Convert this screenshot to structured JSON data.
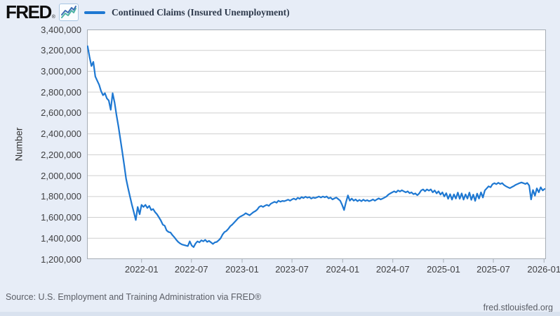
{
  "header": {
    "logo_text": "FRED",
    "logo_reg": "®"
  },
  "legend": {
    "label": "Continued Claims (Insured Unemployment)"
  },
  "footer": {
    "source": "Source: U.S. Employment and Training Administration via FRED®",
    "site": "fred.stlouisfed.org"
  },
  "colors": {
    "line": "#1e78d2",
    "background": "#e7edf7",
    "plot_background": "#ffffff",
    "grid": "#cfcfcf",
    "plot_border": "#a6adb5",
    "axis_text": "#3f3f41",
    "legend_text": "#2e3a4c",
    "source_text": "#5b5e66"
  },
  "chart_data": {
    "type": "line",
    "title": "Continued Claims (Insured Unemployment)",
    "ylabel": "Number",
    "xlabel": "",
    "grid": "horizontal-only",
    "legend_position": "top-left",
    "y_min": 1200000,
    "y_max": 3400000,
    "y_step": 200000,
    "y_tick_labels": [
      "3,400,000",
      "3,200,000",
      "3,000,000",
      "2,800,000",
      "2,600,000",
      "2,400,000",
      "2,200,000",
      "2,000,000",
      "1,800,000",
      "1,600,000",
      "1,400,000",
      "1,200,000"
    ],
    "x_min": "2021-06-17",
    "x_max": "2026-01-08",
    "x_ticks": [
      {
        "date": "2022-01-01",
        "label": "2022-01"
      },
      {
        "date": "2022-07-01",
        "label": "2022-07"
      },
      {
        "date": "2023-01-01",
        "label": "2023-01"
      },
      {
        "date": "2023-07-01",
        "label": "2023-07"
      },
      {
        "date": "2024-01-01",
        "label": "2024-01"
      },
      {
        "date": "2024-07-01",
        "label": "2024-07"
      },
      {
        "date": "2025-01-01",
        "label": "2025-01"
      },
      {
        "date": "2025-07-01",
        "label": "2025-07"
      },
      {
        "date": "2026-01-01",
        "label": "2026-01"
      }
    ],
    "series": [
      {
        "name": "Continued Claims (Insured Unemployment)",
        "color": "#1e78d2",
        "observations": [
          [
            "2021-06-19",
            3240000
          ],
          [
            "2021-06-26",
            3140000
          ],
          [
            "2021-07-03",
            3050000
          ],
          [
            "2021-07-10",
            3090000
          ],
          [
            "2021-07-17",
            2950000
          ],
          [
            "2021-07-24",
            2910000
          ],
          [
            "2021-07-31",
            2870000
          ],
          [
            "2021-08-07",
            2810000
          ],
          [
            "2021-08-14",
            2770000
          ],
          [
            "2021-08-21",
            2790000
          ],
          [
            "2021-08-28",
            2740000
          ],
          [
            "2021-09-04",
            2720000
          ],
          [
            "2021-09-11",
            2630000
          ],
          [
            "2021-09-18",
            2790000
          ],
          [
            "2021-09-25",
            2700000
          ],
          [
            "2021-10-02",
            2580000
          ],
          [
            "2021-10-09",
            2470000
          ],
          [
            "2021-10-16",
            2350000
          ],
          [
            "2021-10-23",
            2230000
          ],
          [
            "2021-10-30",
            2100000
          ],
          [
            "2021-11-06",
            1970000
          ],
          [
            "2021-11-13",
            1880000
          ],
          [
            "2021-11-20",
            1800000
          ],
          [
            "2021-11-27",
            1720000
          ],
          [
            "2021-12-04",
            1650000
          ],
          [
            "2021-12-11",
            1575000
          ],
          [
            "2021-12-18",
            1700000
          ],
          [
            "2021-12-25",
            1630000
          ],
          [
            "2022-01-01",
            1720000
          ],
          [
            "2022-01-08",
            1700000
          ],
          [
            "2022-01-15",
            1720000
          ],
          [
            "2022-01-22",
            1690000
          ],
          [
            "2022-01-29",
            1710000
          ],
          [
            "2022-02-05",
            1670000
          ],
          [
            "2022-02-12",
            1680000
          ],
          [
            "2022-02-19",
            1650000
          ],
          [
            "2022-02-26",
            1630000
          ],
          [
            "2022-03-05",
            1600000
          ],
          [
            "2022-03-12",
            1570000
          ],
          [
            "2022-03-19",
            1530000
          ],
          [
            "2022-03-26",
            1520000
          ],
          [
            "2022-04-02",
            1475000
          ],
          [
            "2022-04-09",
            1460000
          ],
          [
            "2022-04-16",
            1455000
          ],
          [
            "2022-04-23",
            1430000
          ],
          [
            "2022-04-30",
            1410000
          ],
          [
            "2022-05-07",
            1385000
          ],
          [
            "2022-05-14",
            1365000
          ],
          [
            "2022-05-21",
            1350000
          ],
          [
            "2022-05-28",
            1340000
          ],
          [
            "2022-06-04",
            1335000
          ],
          [
            "2022-06-11",
            1330000
          ],
          [
            "2022-06-18",
            1325000
          ],
          [
            "2022-06-25",
            1370000
          ],
          [
            "2022-07-02",
            1330000
          ],
          [
            "2022-07-09",
            1315000
          ],
          [
            "2022-07-16",
            1350000
          ],
          [
            "2022-07-23",
            1370000
          ],
          [
            "2022-07-30",
            1360000
          ],
          [
            "2022-08-06",
            1380000
          ],
          [
            "2022-08-13",
            1370000
          ],
          [
            "2022-08-20",
            1385000
          ],
          [
            "2022-08-27",
            1365000
          ],
          [
            "2022-09-03",
            1375000
          ],
          [
            "2022-09-10",
            1360000
          ],
          [
            "2022-09-17",
            1345000
          ],
          [
            "2022-09-24",
            1360000
          ],
          [
            "2022-10-01",
            1365000
          ],
          [
            "2022-10-08",
            1380000
          ],
          [
            "2022-10-15",
            1400000
          ],
          [
            "2022-10-22",
            1435000
          ],
          [
            "2022-10-29",
            1460000
          ],
          [
            "2022-11-05",
            1470000
          ],
          [
            "2022-11-12",
            1490000
          ],
          [
            "2022-11-19",
            1515000
          ],
          [
            "2022-11-26",
            1530000
          ],
          [
            "2022-12-03",
            1550000
          ],
          [
            "2022-12-10",
            1570000
          ],
          [
            "2022-12-17",
            1590000
          ],
          [
            "2022-12-24",
            1605000
          ],
          [
            "2022-12-31",
            1615000
          ],
          [
            "2023-01-07",
            1625000
          ],
          [
            "2023-01-14",
            1640000
          ],
          [
            "2023-01-21",
            1630000
          ],
          [
            "2023-01-28",
            1620000
          ],
          [
            "2023-02-04",
            1635000
          ],
          [
            "2023-02-11",
            1650000
          ],
          [
            "2023-02-18",
            1660000
          ],
          [
            "2023-02-25",
            1675000
          ],
          [
            "2023-03-04",
            1700000
          ],
          [
            "2023-03-11",
            1710000
          ],
          [
            "2023-03-18",
            1700000
          ],
          [
            "2023-03-25",
            1712000
          ],
          [
            "2023-04-01",
            1720000
          ],
          [
            "2023-04-08",
            1710000
          ],
          [
            "2023-04-15",
            1730000
          ],
          [
            "2023-04-22",
            1740000
          ],
          [
            "2023-04-29",
            1750000
          ],
          [
            "2023-05-06",
            1740000
          ],
          [
            "2023-05-13",
            1760000
          ],
          [
            "2023-05-20",
            1750000
          ],
          [
            "2023-05-27",
            1758000
          ],
          [
            "2023-06-03",
            1755000
          ],
          [
            "2023-06-10",
            1762000
          ],
          [
            "2023-06-17",
            1770000
          ],
          [
            "2023-06-24",
            1760000
          ],
          [
            "2023-07-01",
            1772000
          ],
          [
            "2023-07-08",
            1780000
          ],
          [
            "2023-07-15",
            1770000
          ],
          [
            "2023-07-22",
            1788000
          ],
          [
            "2023-07-29",
            1778000
          ],
          [
            "2023-08-05",
            1795000
          ],
          [
            "2023-08-12",
            1785000
          ],
          [
            "2023-08-19",
            1798000
          ],
          [
            "2023-08-26",
            1788000
          ],
          [
            "2023-09-02",
            1795000
          ],
          [
            "2023-09-09",
            1780000
          ],
          [
            "2023-09-16",
            1790000
          ],
          [
            "2023-09-23",
            1785000
          ],
          [
            "2023-09-30",
            1792000
          ],
          [
            "2023-10-07",
            1800000
          ],
          [
            "2023-10-14",
            1790000
          ],
          [
            "2023-10-21",
            1800000
          ],
          [
            "2023-10-28",
            1792000
          ],
          [
            "2023-11-04",
            1800000
          ],
          [
            "2023-11-11",
            1782000
          ],
          [
            "2023-11-18",
            1790000
          ],
          [
            "2023-11-25",
            1772000
          ],
          [
            "2023-12-02",
            1782000
          ],
          [
            "2023-12-09",
            1790000
          ],
          [
            "2023-12-16",
            1775000
          ],
          [
            "2023-12-23",
            1760000
          ],
          [
            "2023-12-30",
            1720000
          ],
          [
            "2024-01-06",
            1670000
          ],
          [
            "2024-01-13",
            1745000
          ],
          [
            "2024-01-20",
            1810000
          ],
          [
            "2024-01-27",
            1760000
          ],
          [
            "2024-02-03",
            1780000
          ],
          [
            "2024-02-10",
            1760000
          ],
          [
            "2024-02-17",
            1772000
          ],
          [
            "2024-02-24",
            1755000
          ],
          [
            "2024-03-02",
            1768000
          ],
          [
            "2024-03-09",
            1755000
          ],
          [
            "2024-03-16",
            1770000
          ],
          [
            "2024-03-23",
            1758000
          ],
          [
            "2024-03-30",
            1765000
          ],
          [
            "2024-04-06",
            1755000
          ],
          [
            "2024-04-13",
            1762000
          ],
          [
            "2024-04-20",
            1772000
          ],
          [
            "2024-04-27",
            1760000
          ],
          [
            "2024-05-04",
            1772000
          ],
          [
            "2024-05-11",
            1782000
          ],
          [
            "2024-05-18",
            1772000
          ],
          [
            "2024-05-25",
            1780000
          ],
          [
            "2024-06-01",
            1790000
          ],
          [
            "2024-06-08",
            1800000
          ],
          [
            "2024-06-15",
            1818000
          ],
          [
            "2024-06-22",
            1830000
          ],
          [
            "2024-06-29",
            1840000
          ],
          [
            "2024-07-06",
            1850000
          ],
          [
            "2024-07-13",
            1840000
          ],
          [
            "2024-07-20",
            1858000
          ],
          [
            "2024-07-27",
            1848000
          ],
          [
            "2024-08-03",
            1860000
          ],
          [
            "2024-08-10",
            1850000
          ],
          [
            "2024-08-17",
            1840000
          ],
          [
            "2024-08-24",
            1850000
          ],
          [
            "2024-08-31",
            1832000
          ],
          [
            "2024-09-07",
            1840000
          ],
          [
            "2024-09-14",
            1822000
          ],
          [
            "2024-09-21",
            1830000
          ],
          [
            "2024-09-28",
            1812000
          ],
          [
            "2024-10-05",
            1830000
          ],
          [
            "2024-10-12",
            1858000
          ],
          [
            "2024-10-19",
            1868000
          ],
          [
            "2024-10-26",
            1850000
          ],
          [
            "2024-11-02",
            1868000
          ],
          [
            "2024-11-09",
            1856000
          ],
          [
            "2024-11-16",
            1868000
          ],
          [
            "2024-11-23",
            1840000
          ],
          [
            "2024-11-30",
            1858000
          ],
          [
            "2024-12-07",
            1830000
          ],
          [
            "2024-12-14",
            1850000
          ],
          [
            "2024-12-21",
            1818000
          ],
          [
            "2024-12-28",
            1840000
          ],
          [
            "2025-01-04",
            1800000
          ],
          [
            "2025-01-11",
            1832000
          ],
          [
            "2025-01-18",
            1778000
          ],
          [
            "2025-01-25",
            1822000
          ],
          [
            "2025-02-01",
            1770000
          ],
          [
            "2025-02-08",
            1820000
          ],
          [
            "2025-02-15",
            1780000
          ],
          [
            "2025-02-22",
            1838000
          ],
          [
            "2025-03-01",
            1778000
          ],
          [
            "2025-03-08",
            1830000
          ],
          [
            "2025-03-15",
            1770000
          ],
          [
            "2025-03-22",
            1820000
          ],
          [
            "2025-03-29",
            1780000
          ],
          [
            "2025-04-05",
            1838000
          ],
          [
            "2025-04-12",
            1768000
          ],
          [
            "2025-04-19",
            1818000
          ],
          [
            "2025-04-26",
            1758000
          ],
          [
            "2025-05-03",
            1828000
          ],
          [
            "2025-05-10",
            1780000
          ],
          [
            "2025-05-17",
            1840000
          ],
          [
            "2025-05-24",
            1790000
          ],
          [
            "2025-05-31",
            1858000
          ],
          [
            "2025-06-07",
            1878000
          ],
          [
            "2025-06-14",
            1898000
          ],
          [
            "2025-06-21",
            1888000
          ],
          [
            "2025-06-28",
            1918000
          ],
          [
            "2025-07-05",
            1928000
          ],
          [
            "2025-07-12",
            1918000
          ],
          [
            "2025-07-19",
            1932000
          ],
          [
            "2025-07-26",
            1920000
          ],
          [
            "2025-08-02",
            1928000
          ],
          [
            "2025-08-09",
            1910000
          ],
          [
            "2025-08-16",
            1898000
          ],
          [
            "2025-08-23",
            1888000
          ],
          [
            "2025-08-30",
            1880000
          ],
          [
            "2025-09-06",
            1890000
          ],
          [
            "2025-09-13",
            1900000
          ],
          [
            "2025-09-20",
            1912000
          ],
          [
            "2025-09-27",
            1920000
          ],
          [
            "2025-10-04",
            1928000
          ],
          [
            "2025-10-11",
            1935000
          ],
          [
            "2025-10-18",
            1928000
          ],
          [
            "2025-10-25",
            1920000
          ],
          [
            "2025-11-01",
            1930000
          ],
          [
            "2025-11-08",
            1905000
          ],
          [
            "2025-11-15",
            1772000
          ],
          [
            "2025-11-22",
            1862000
          ],
          [
            "2025-11-29",
            1808000
          ],
          [
            "2025-12-06",
            1878000
          ],
          [
            "2025-12-13",
            1840000
          ],
          [
            "2025-12-20",
            1888000
          ],
          [
            "2025-12-27",
            1858000
          ],
          [
            "2026-01-03",
            1872000
          ]
        ]
      }
    ]
  }
}
